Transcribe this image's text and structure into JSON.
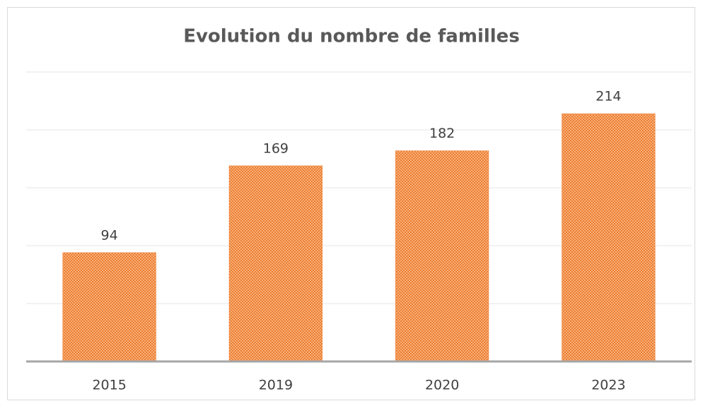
{
  "chart_data": {
    "type": "bar",
    "title": "Evolution du nombre de familles",
    "categories": [
      "2015",
      "2019",
      "2020",
      "2023"
    ],
    "values": [
      94,
      169,
      182,
      214
    ],
    "color": "#ed7d31",
    "ylim": [
      0,
      250
    ],
    "yticks": [
      0,
      50,
      100,
      150,
      200,
      250
    ],
    "grid": true
  }
}
